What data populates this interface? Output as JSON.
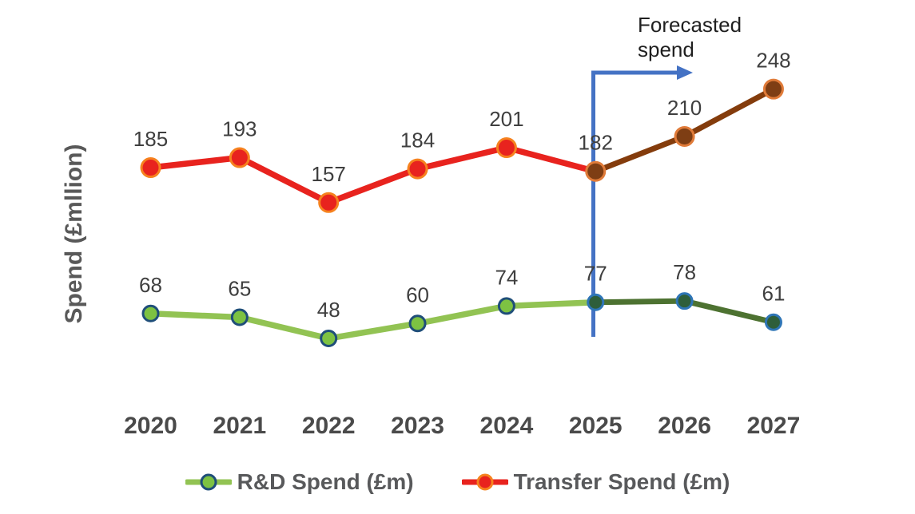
{
  "chart_data": {
    "type": "line",
    "title": "",
    "ylabel": "Spend (£mllion)",
    "xlabel": "",
    "categories": [
      "2020",
      "2021",
      "2022",
      "2023",
      "2024",
      "2025",
      "2026",
      "2027"
    ],
    "forecast_start_index": 5,
    "legend_position": "bottom",
    "grid": false,
    "ylim": [
      0,
      260
    ],
    "annotation": {
      "label": "Forecasted spend",
      "arrow_color": "#4472C4"
    },
    "series": [
      {
        "name": "R&D Spend (£m)",
        "values": [
          68,
          65,
          48,
          60,
          74,
          77,
          78,
          61
        ],
        "line_color": "#92C353",
        "marker_fill": "#7DC242",
        "marker_outline": "#1F4E79",
        "forecast_line_color": "#4D7231",
        "forecast_marker_fill": "#2E5E3A",
        "forecast_marker_outline": "#2E75B6"
      },
      {
        "name": "Transfer Spend (£m)",
        "values": [
          185,
          193,
          157,
          184,
          201,
          182,
          210,
          248
        ],
        "line_color": "#E8231E",
        "marker_fill": "#E8231E",
        "marker_outline": "#F6821F",
        "forecast_line_color": "#843C0C",
        "forecast_marker_fill": "#7E3E14",
        "forecast_marker_outline": "#E07B39"
      }
    ],
    "label_color": "#3F3F3F",
    "axis_label_color": "#4A4A4A"
  }
}
